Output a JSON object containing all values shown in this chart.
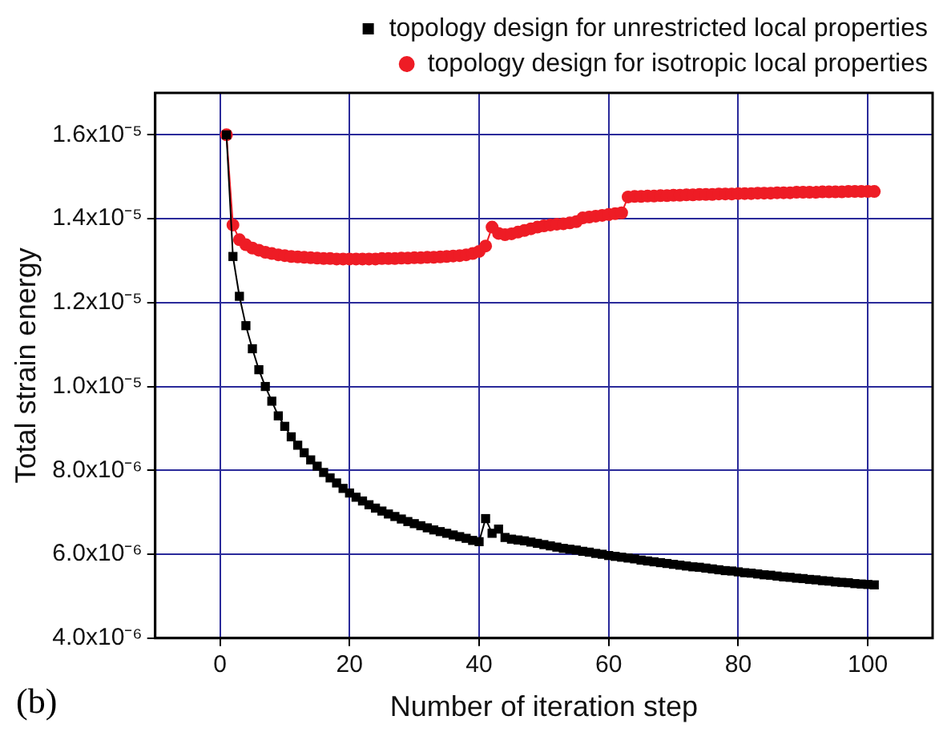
{
  "chart_data": {
    "type": "line",
    "xlabel": "Number of iteration step",
    "ylabel": "Total strain energy",
    "x": [
      1,
      2,
      3,
      4,
      5,
      6,
      7,
      8,
      9,
      10,
      11,
      12,
      13,
      14,
      15,
      16,
      17,
      18,
      19,
      20,
      21,
      22,
      23,
      24,
      25,
      26,
      27,
      28,
      29,
      30,
      31,
      32,
      33,
      34,
      35,
      36,
      37,
      38,
      39,
      40,
      41,
      42,
      43,
      44,
      45,
      46,
      47,
      48,
      49,
      50,
      51,
      52,
      53,
      54,
      55,
      56,
      57,
      58,
      59,
      60,
      61,
      62,
      63,
      64,
      65,
      66,
      67,
      68,
      69,
      70,
      71,
      72,
      73,
      74,
      75,
      76,
      77,
      78,
      79,
      80,
      81,
      82,
      83,
      84,
      85,
      86,
      87,
      88,
      89,
      90,
      91,
      92,
      93,
      94,
      95,
      96,
      97,
      98,
      99,
      100,
      101
    ],
    "series": [
      {
        "name": "topology design for unrestricted local properties",
        "color": "#000000",
        "marker": "square",
        "values": [
          1.6e-05,
          1.31e-05,
          1.215e-05,
          1.145e-05,
          1.09e-05,
          1.04e-05,
          1e-05,
          9.65e-06,
          9.3e-06,
          9.05e-06,
          8.8e-06,
          8.6e-06,
          8.42e-06,
          8.25e-06,
          8.1e-06,
          7.95e-06,
          7.82e-06,
          7.7e-06,
          7.57e-06,
          7.46e-06,
          7.36e-06,
          7.27e-06,
          7.18e-06,
          7.1e-06,
          7.03e-06,
          6.96e-06,
          6.9e-06,
          6.84e-06,
          6.78e-06,
          6.73e-06,
          6.68e-06,
          6.63e-06,
          6.58e-06,
          6.54e-06,
          6.5e-06,
          6.46e-06,
          6.42e-06,
          6.38e-06,
          6.33e-06,
          6.3e-06,
          6.85e-06,
          6.5e-06,
          6.6e-06,
          6.4e-06,
          6.36e-06,
          6.34e-06,
          6.32e-06,
          6.29e-06,
          6.26e-06,
          6.23e-06,
          6.2e-06,
          6.17e-06,
          6.14e-06,
          6.12e-06,
          6.1e-06,
          6.07e-06,
          6.05e-06,
          6.02e-06,
          6e-06,
          5.97e-06,
          5.95e-06,
          5.93e-06,
          5.91e-06,
          5.89e-06,
          5.86e-06,
          5.84e-06,
          5.82e-06,
          5.8e-06,
          5.78e-06,
          5.76e-06,
          5.74e-06,
          5.72e-06,
          5.7e-06,
          5.69e-06,
          5.67e-06,
          5.65e-06,
          5.63e-06,
          5.61e-06,
          5.6e-06,
          5.58e-06,
          5.56e-06,
          5.55e-06,
          5.53e-06,
          5.51e-06,
          5.5e-06,
          5.48e-06,
          5.46e-06,
          5.45e-06,
          5.43e-06,
          5.42e-06,
          5.4e-06,
          5.39e-06,
          5.37e-06,
          5.36e-06,
          5.34e-06,
          5.33e-06,
          5.32e-06,
          5.3e-06,
          5.29e-06,
          5.28e-06,
          5.27e-06
        ]
      },
      {
        "name": "topology design for isotropic local properties",
        "color": "#ee1c25",
        "marker": "circle",
        "values": [
          1.6e-05,
          1.385e-05,
          1.35e-05,
          1.338e-05,
          1.33e-05,
          1.325e-05,
          1.32e-05,
          1.317e-05,
          1.314e-05,
          1.312e-05,
          1.31e-05,
          1.309e-05,
          1.308e-05,
          1.307e-05,
          1.306e-05,
          1.305e-05,
          1.305e-05,
          1.304e-05,
          1.304e-05,
          1.304e-05,
          1.304e-05,
          1.304e-05,
          1.304e-05,
          1.304e-05,
          1.305e-05,
          1.305e-05,
          1.305e-05,
          1.306e-05,
          1.306e-05,
          1.307e-05,
          1.307e-05,
          1.308e-05,
          1.308e-05,
          1.309e-05,
          1.31e-05,
          1.311e-05,
          1.312e-05,
          1.314e-05,
          1.317e-05,
          1.322e-05,
          1.335e-05,
          1.38e-05,
          1.365e-05,
          1.362e-05,
          1.364e-05,
          1.368e-05,
          1.372e-05,
          1.376e-05,
          1.38e-05,
          1.383e-05,
          1.385e-05,
          1.387e-05,
          1.388e-05,
          1.39e-05,
          1.393e-05,
          1.402e-05,
          1.404e-05,
          1.406e-05,
          1.408e-05,
          1.41e-05,
          1.412e-05,
          1.414e-05,
          1.452e-05,
          1.453e-05,
          1.453e-05,
          1.454e-05,
          1.454e-05,
          1.455e-05,
          1.455e-05,
          1.456e-05,
          1.456e-05,
          1.457e-05,
          1.457e-05,
          1.458e-05,
          1.458e-05,
          1.458e-05,
          1.459e-05,
          1.459e-05,
          1.459e-05,
          1.46e-05,
          1.46e-05,
          1.46e-05,
          1.461e-05,
          1.461e-05,
          1.461e-05,
          1.462e-05,
          1.462e-05,
          1.462e-05,
          1.463e-05,
          1.463e-05,
          1.463e-05,
          1.463e-05,
          1.464e-05,
          1.464e-05,
          1.464e-05,
          1.464e-05,
          1.465e-05,
          1.465e-05,
          1.465e-05,
          1.465e-05,
          1.465e-05
        ]
      }
    ],
    "xlim": [
      -10,
      110
    ],
    "xticks": [
      0,
      20,
      40,
      60,
      80,
      100
    ],
    "ylim": [
      4e-06,
      1.7e-05
    ],
    "yticks": [
      {
        "value": 4e-06,
        "label": "4.0x10⁻⁶"
      },
      {
        "value": 6e-06,
        "label": "6.0x10⁻⁶"
      },
      {
        "value": 8e-06,
        "label": "8.0x10⁻⁶"
      },
      {
        "value": 1e-05,
        "label": "1.0x10⁻⁵"
      },
      {
        "value": 1.2e-05,
        "label": "1.2x10⁻⁵"
      },
      {
        "value": 1.4e-05,
        "label": "1.4x10⁻⁵"
      },
      {
        "value": 1.6e-05,
        "label": "1.6x10⁻⁵"
      }
    ],
    "grid": true,
    "legend": "top right",
    "line_style": "solid",
    "annotations": [
      "(b)"
    ]
  }
}
